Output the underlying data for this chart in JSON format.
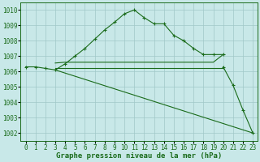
{
  "background_color": "#c8e8e8",
  "grid_color": "#a0c8c8",
  "line_color": "#1a6b1a",
  "xlim": [
    -0.5,
    23.5
  ],
  "ylim": [
    1001.5,
    1010.5
  ],
  "yticks": [
    1002,
    1003,
    1004,
    1005,
    1006,
    1007,
    1008,
    1009,
    1010
  ],
  "xticks": [
    0,
    1,
    2,
    3,
    4,
    5,
    6,
    7,
    8,
    9,
    10,
    11,
    12,
    13,
    14,
    15,
    16,
    17,
    18,
    19,
    20,
    21,
    22,
    23
  ],
  "xlabel": "Graphe pression niveau de la mer (hPa)",
  "series": [
    {
      "x": [
        0,
        1,
        2,
        3,
        4,
        5,
        6,
        7,
        8,
        9,
        10,
        11,
        12,
        13,
        14,
        15,
        16,
        17,
        18,
        19,
        20
      ],
      "y": [
        1006.3,
        1006.3,
        1006.2,
        1006.1,
        1006.5,
        1007.0,
        1007.5,
        1008.1,
        1008.7,
        1009.2,
        1009.75,
        1010.0,
        1009.5,
        1009.1,
        1009.1,
        1008.35,
        1008.0,
        1007.5,
        1007.1,
        1007.1,
        1007.1
      ],
      "has_markers": true
    },
    {
      "x": [
        3,
        4,
        5,
        6,
        7,
        8,
        9,
        10,
        11,
        12,
        13,
        14,
        15,
        16,
        17,
        18,
        19,
        20
      ],
      "y": [
        1006.55,
        1006.6,
        1006.6,
        1006.6,
        1006.6,
        1006.6,
        1006.6,
        1006.6,
        1006.6,
        1006.6,
        1006.6,
        1006.6,
        1006.6,
        1006.6,
        1006.6,
        1006.6,
        1006.6,
        1007.1
      ],
      "has_markers": false
    },
    {
      "x": [
        3,
        4,
        5,
        6,
        7,
        8,
        9,
        10,
        11,
        12,
        13,
        14,
        15,
        16,
        17,
        18,
        19,
        20
      ],
      "y": [
        1006.2,
        1006.2,
        1006.2,
        1006.2,
        1006.2,
        1006.2,
        1006.2,
        1006.2,
        1006.2,
        1006.2,
        1006.2,
        1006.2,
        1006.2,
        1006.2,
        1006.2,
        1006.2,
        1006.2,
        1006.2
      ],
      "has_markers": false
    },
    {
      "x": [
        3,
        23
      ],
      "y": [
        1006.1,
        1002.0
      ],
      "has_markers": false
    },
    {
      "x": [
        20,
        21,
        22,
        23
      ],
      "y": [
        1006.3,
        1005.1,
        1003.5,
        1002.0
      ],
      "has_markers": true
    }
  ]
}
